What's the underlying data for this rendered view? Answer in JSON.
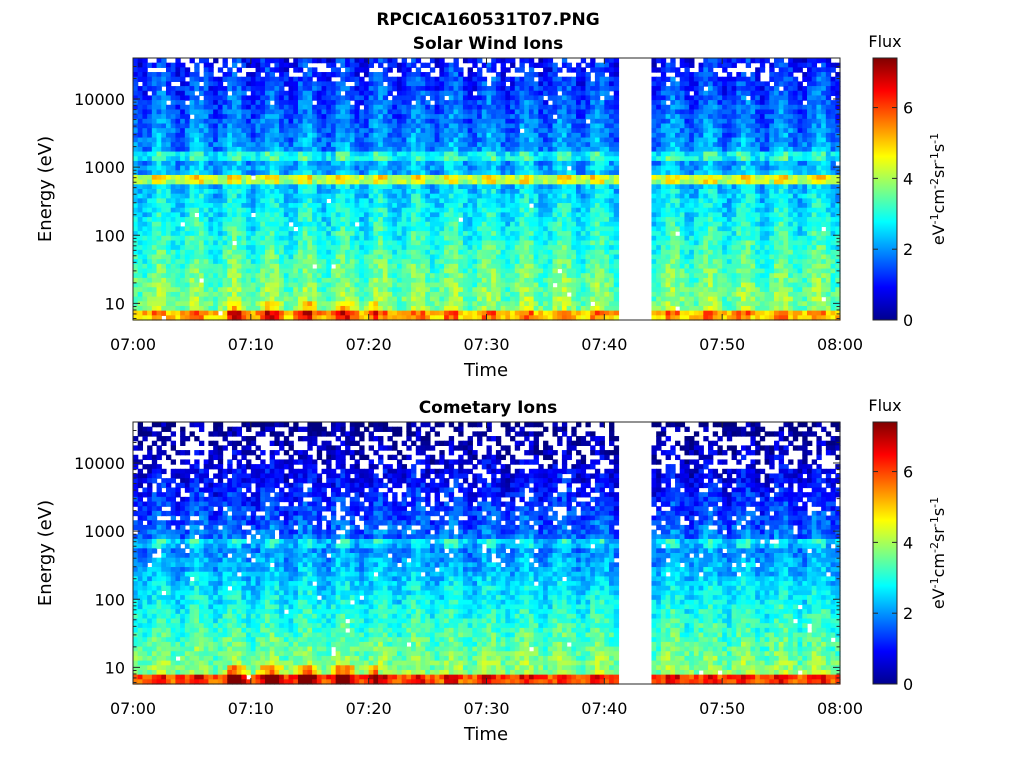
{
  "figure": {
    "filename": "RPCICA160531T07.PNG"
  },
  "chart_data": [
    {
      "type": "heatmap",
      "title": "Solar Wind Ions",
      "xlabel": "Time",
      "ylabel": "Energy (eV)",
      "x_ticks": [
        "07:00",
        "07:10",
        "07:20",
        "07:30",
        "07:40",
        "07:50",
        "08:00"
      ],
      "xlim": [
        "07:00",
        "08:00"
      ],
      "y_scale": "log",
      "y_ticks": [
        "10",
        "100",
        "1000",
        "10000"
      ],
      "ylim": [
        5.7,
        40000
      ],
      "data_gap": [
        "07:41",
        "07:44"
      ],
      "colorbar": {
        "title": "Flux",
        "label": "eV-1cm-2sr-1s-1",
        "ticks": [
          "0",
          "2",
          "4",
          "6"
        ],
        "clim": [
          0,
          7.4
        ]
      },
      "features": [
        {
          "energy_eV": 700,
          "flux": 4.6,
          "note": "periodic peak at ~700 eV"
        },
        {
          "energy_eV": 1400,
          "flux": 3.2
        },
        {
          "energy_eV": 7,
          "flux": 5.6,
          "note": "max near 07:10-07:14"
        }
      ]
    },
    {
      "type": "heatmap",
      "title": "Cometary Ions",
      "xlabel": "Time",
      "ylabel": "Energy (eV)",
      "x_ticks": [
        "07:00",
        "07:10",
        "07:20",
        "07:30",
        "07:40",
        "07:50",
        "08:00"
      ],
      "xlim": [
        "07:00",
        "08:00"
      ],
      "y_scale": "log",
      "y_ticks": [
        "10",
        "100",
        "1000",
        "10000"
      ],
      "ylim": [
        5.7,
        40000
      ],
      "data_gap": [
        "07:41",
        "07:44"
      ],
      "colorbar": {
        "title": "Flux",
        "label": "eV-1cm-2sr-1s-1",
        "ticks": [
          "0",
          "2",
          "4",
          "6"
        ],
        "clim": [
          0,
          7.4
        ]
      },
      "features": [
        {
          "energy_eV": 700,
          "flux": 2.8
        },
        {
          "energy_eV": 7,
          "flux": 6.4,
          "note": "max near 07:10-07:14"
        }
      ]
    }
  ]
}
